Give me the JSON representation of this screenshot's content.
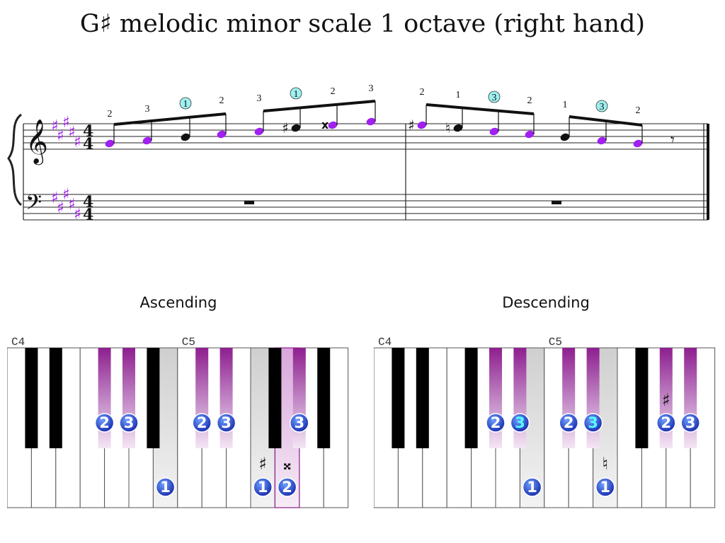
{
  "title": "G♯ melodic minor scale 1 octave (right hand)",
  "score": {
    "time_signature": {
      "top": "4",
      "bottom": "4"
    },
    "accidental_sharp": "♯",
    "accidental_natural": "♮",
    "accidental_double_sharp": "𝄪",
    "key_signature": "5 sharps",
    "note_color": "#a020f0",
    "circle_color": "#9ef0f0",
    "measure1_fingers": [
      "2",
      "3",
      "1",
      "2",
      "3",
      "1",
      "2",
      "3"
    ],
    "measure2_fingers": [
      "2",
      "1",
      "3",
      "2",
      "1",
      "3",
      "2"
    ]
  },
  "keyboards": [
    {
      "heading": "Ascending",
      "label_c4": "C4",
      "label_c5": "C5",
      "highlight_color": "#8e1f8f",
      "white_fingers": [
        {
          "finger": "1",
          "accidental": ""
        },
        {
          "finger": "1",
          "accidental": "♯"
        },
        {
          "finger": "2",
          "accidental": "𝄪"
        }
      ],
      "black_fingers": [
        "2",
        "3",
        "2",
        "3",
        "3"
      ]
    },
    {
      "heading": "Descending",
      "label_c4": "C4",
      "label_c5": "C5",
      "highlight_color": "#8e1f8f",
      "white_fingers": [
        {
          "finger": "1",
          "accidental": ""
        },
        {
          "finger": "1",
          "accidental": "♮"
        }
      ],
      "black_fingers": [
        "2",
        "3",
        "2",
        "3",
        "2",
        "3"
      ],
      "black_accidental": "♯"
    }
  ]
}
